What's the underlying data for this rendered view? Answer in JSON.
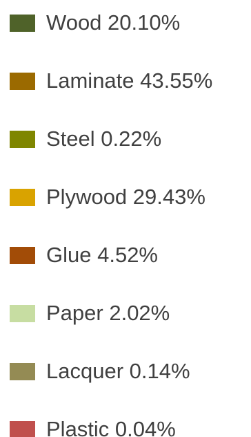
{
  "chart_data": {
    "type": "pie",
    "legend_position": "right",
    "series": [
      {
        "name": "Wood",
        "value": 20.1,
        "label": "Wood 20.10%",
        "color": "#4f6229"
      },
      {
        "name": "Laminate",
        "value": 43.55,
        "label": "Laminate 43.55%",
        "color": "#9b6a00"
      },
      {
        "name": "Steel",
        "value": 0.22,
        "label": "Steel 0.22%",
        "color": "#7f8600"
      },
      {
        "name": "Plywood",
        "value": 29.43,
        "label": "Plywood 29.43%",
        "color": "#d9a300"
      },
      {
        "name": "Glue",
        "value": 4.52,
        "label": "Glue 4.52%",
        "color": "#a24c07"
      },
      {
        "name": "Paper",
        "value": 2.02,
        "label": "Paper 2.02%",
        "color": "#c7dda2"
      },
      {
        "name": "Lacquer",
        "value": 0.14,
        "label": "Lacquer 0.14%",
        "color": "#948b54"
      },
      {
        "name": "Plastic",
        "value": 0.04,
        "label": "Plastic 0.04%",
        "color": "#c0504d"
      }
    ]
  }
}
